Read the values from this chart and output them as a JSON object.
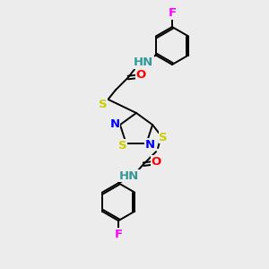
{
  "bg_color": "#ececec",
  "atom_colors": {
    "N": "#0000ff",
    "O": "#ff0000",
    "S": "#cccc00",
    "F": "#ff00ff",
    "NH": "#339999",
    "bond": "#000000"
  },
  "lw": 1.4,
  "fs": 9.5
}
